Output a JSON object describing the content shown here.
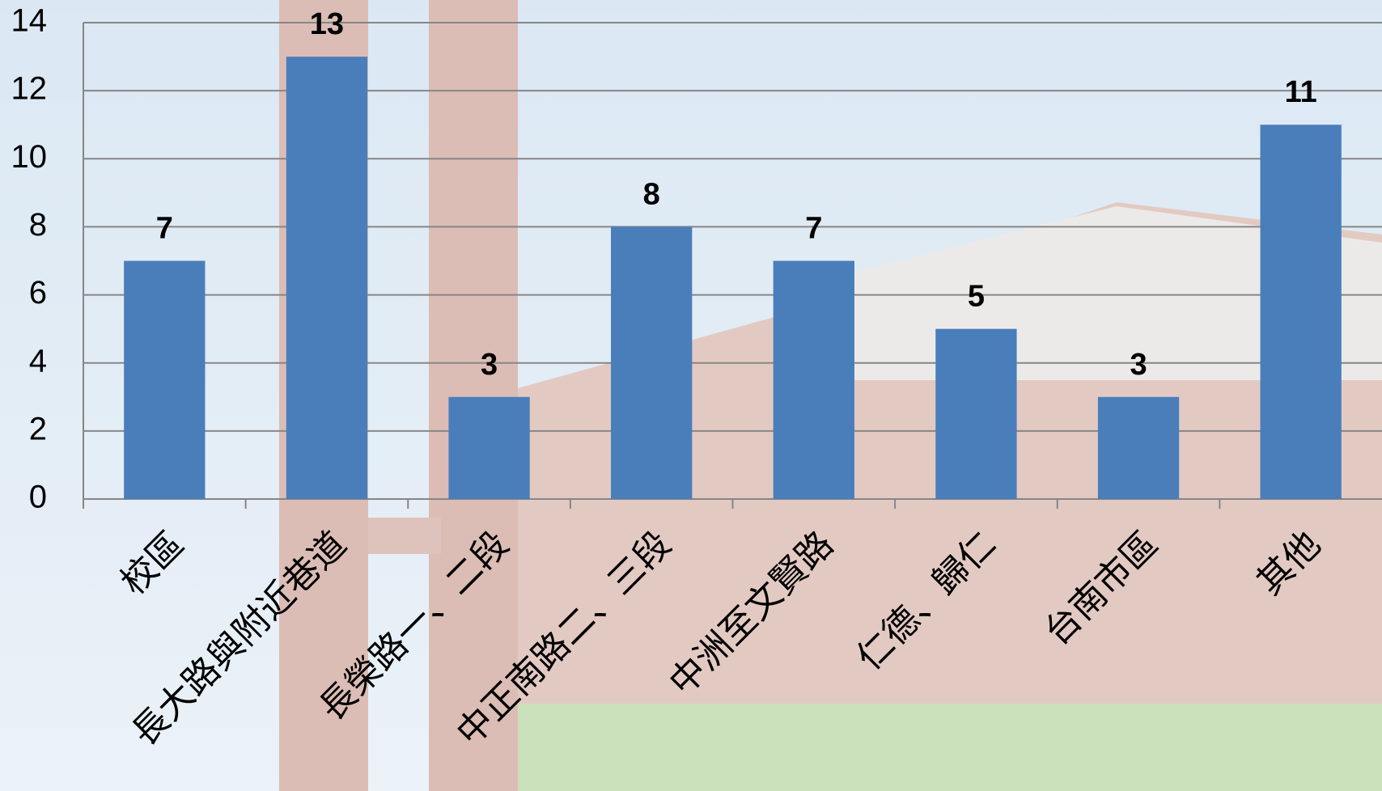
{
  "chart_data": {
    "type": "bar",
    "categories": [
      "校區",
      "長大路與附近巷道",
      "長榮路一、二段",
      "中正南路二、三段",
      "中洲至文賢路",
      "仁德、歸仁",
      "台南市區",
      "其他"
    ],
    "values": [
      7,
      13,
      3,
      8,
      7,
      5,
      3,
      11
    ],
    "color": "#4a7ebb",
    "ylim": [
      0,
      14
    ],
    "yticks": [
      0,
      2,
      4,
      6,
      8,
      10,
      12,
      14
    ],
    "grid": true,
    "value_labels_shown": true
  }
}
